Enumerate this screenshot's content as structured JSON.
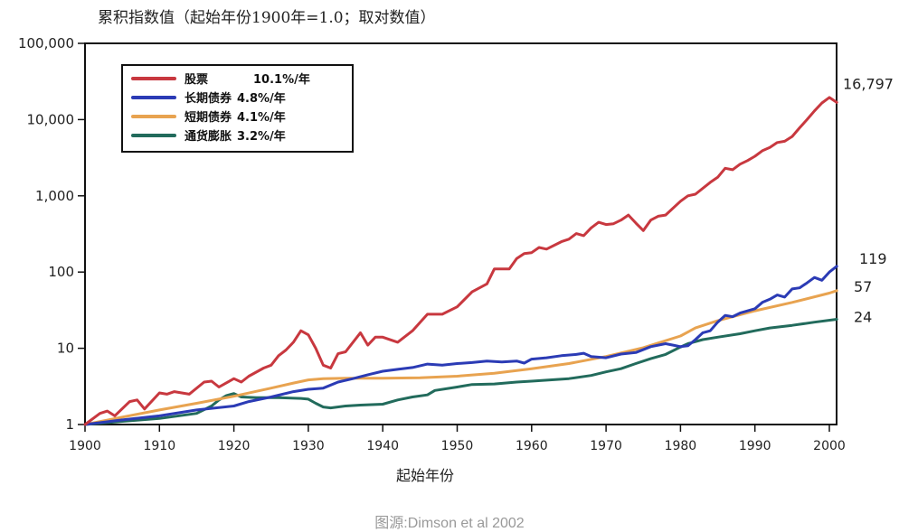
{
  "chart_data": {
    "type": "line",
    "title": "累积指数值（起始年份1900年=1.0；取对数值）",
    "xlabel": "起始年份",
    "ylabel": "",
    "yscale": "log",
    "xlim": [
      1900,
      2001
    ],
    "ylim": [
      1,
      100000
    ],
    "yticks": [
      {
        "value": 1,
        "label": "1"
      },
      {
        "value": 10,
        "label": "10"
      },
      {
        "value": 100,
        "label": "100"
      },
      {
        "value": 1000,
        "label": "1,000"
      },
      {
        "value": 10000,
        "label": "10,000"
      },
      {
        "value": 100000,
        "label": "100,000"
      }
    ],
    "xticks": [
      {
        "value": 1900,
        "label": "1900"
      },
      {
        "value": 1910,
        "label": "1910"
      },
      {
        "value": 1920,
        "label": "1920"
      },
      {
        "value": 1930,
        "label": "1930"
      },
      {
        "value": 1940,
        "label": "1940"
      },
      {
        "value": 1950,
        "label": "1950"
      },
      {
        "value": 1960,
        "label": "1960"
      },
      {
        "value": 1970,
        "label": "1970"
      },
      {
        "value": 1980,
        "label": "1980"
      },
      {
        "value": 1990,
        "label": "1990"
      },
      {
        "value": 2000,
        "label": "2000"
      }
    ],
    "legend_position": "top-left",
    "grid": false,
    "series": [
      {
        "name": "股票",
        "legend_rate": "10.1%/年",
        "color": "#c8383f",
        "end_label": "16,797",
        "points": [
          [
            1900,
            1
          ],
          [
            1902,
            1.4
          ],
          [
            1903,
            1.5
          ],
          [
            1904,
            1.3
          ],
          [
            1906,
            2.0
          ],
          [
            1907,
            2.1
          ],
          [
            1908,
            1.6
          ],
          [
            1910,
            2.6
          ],
          [
            1911,
            2.5
          ],
          [
            1912,
            2.7
          ],
          [
            1914,
            2.5
          ],
          [
            1916,
            3.6
          ],
          [
            1917,
            3.7
          ],
          [
            1918,
            3.1
          ],
          [
            1920,
            4.0
          ],
          [
            1921,
            3.6
          ],
          [
            1922,
            4.3
          ],
          [
            1924,
            5.5
          ],
          [
            1925,
            6.0
          ],
          [
            1926,
            8.0
          ],
          [
            1927,
            9.5
          ],
          [
            1928,
            12
          ],
          [
            1929,
            17
          ],
          [
            1930,
            15
          ],
          [
            1931,
            10
          ],
          [
            1932,
            6.0
          ],
          [
            1933,
            5.5
          ],
          [
            1934,
            8.5
          ],
          [
            1935,
            9.0
          ],
          [
            1937,
            16
          ],
          [
            1938,
            11
          ],
          [
            1939,
            14
          ],
          [
            1940,
            14
          ],
          [
            1942,
            12
          ],
          [
            1944,
            17
          ],
          [
            1946,
            28
          ],
          [
            1948,
            28
          ],
          [
            1950,
            35
          ],
          [
            1952,
            55
          ],
          [
            1953,
            62
          ],
          [
            1954,
            70
          ],
          [
            1955,
            110
          ],
          [
            1957,
            110
          ],
          [
            1958,
            150
          ],
          [
            1959,
            175
          ],
          [
            1960,
            180
          ],
          [
            1961,
            210
          ],
          [
            1962,
            200
          ],
          [
            1964,
            250
          ],
          [
            1965,
            270
          ],
          [
            1966,
            320
          ],
          [
            1967,
            300
          ],
          [
            1968,
            380
          ],
          [
            1969,
            450
          ],
          [
            1970,
            420
          ],
          [
            1971,
            430
          ],
          [
            1972,
            480
          ],
          [
            1973,
            560
          ],
          [
            1974,
            440
          ],
          [
            1975,
            350
          ],
          [
            1976,
            480
          ],
          [
            1977,
            540
          ],
          [
            1978,
            560
          ],
          [
            1980,
            850
          ],
          [
            1981,
            1000
          ],
          [
            1982,
            1050
          ],
          [
            1984,
            1500
          ],
          [
            1985,
            1750
          ],
          [
            1986,
            2300
          ],
          [
            1987,
            2200
          ],
          [
            1988,
            2600
          ],
          [
            1989,
            2900
          ],
          [
            1990,
            3300
          ],
          [
            1991,
            3900
          ],
          [
            1992,
            4300
          ],
          [
            1993,
            5000
          ],
          [
            1994,
            5200
          ],
          [
            1995,
            6000
          ],
          [
            1996,
            7800
          ],
          [
            1997,
            10000
          ],
          [
            1998,
            13000
          ],
          [
            1999,
            16500
          ],
          [
            2000,
            19500
          ],
          [
            2001,
            16797
          ]
        ]
      },
      {
        "name": "长期债券",
        "legend_rate": "4.8%/年",
        "color": "#2b3bb5",
        "end_label": "119",
        "points": [
          [
            1900,
            1
          ],
          [
            1905,
            1.15
          ],
          [
            1910,
            1.3
          ],
          [
            1915,
            1.55
          ],
          [
            1920,
            1.75
          ],
          [
            1922,
            2.0
          ],
          [
            1925,
            2.3
          ],
          [
            1928,
            2.7
          ],
          [
            1930,
            2.9
          ],
          [
            1932,
            3.0
          ],
          [
            1934,
            3.6
          ],
          [
            1936,
            4.0
          ],
          [
            1938,
            4.5
          ],
          [
            1940,
            5.0
          ],
          [
            1942,
            5.3
          ],
          [
            1944,
            5.6
          ],
          [
            1946,
            6.2
          ],
          [
            1948,
            6.0
          ],
          [
            1950,
            6.3
          ],
          [
            1952,
            6.5
          ],
          [
            1954,
            6.8
          ],
          [
            1956,
            6.6
          ],
          [
            1958,
            6.8
          ],
          [
            1959,
            6.4
          ],
          [
            1960,
            7.2
          ],
          [
            1962,
            7.5
          ],
          [
            1964,
            8.0
          ],
          [
            1966,
            8.3
          ],
          [
            1967,
            8.6
          ],
          [
            1968,
            7.8
          ],
          [
            1970,
            7.5
          ],
          [
            1972,
            8.4
          ],
          [
            1974,
            8.8
          ],
          [
            1976,
            10.5
          ],
          [
            1978,
            11.5
          ],
          [
            1979,
            11
          ],
          [
            1980,
            10.5
          ],
          [
            1981,
            10.8
          ],
          [
            1982,
            13
          ],
          [
            1983,
            16
          ],
          [
            1984,
            17
          ],
          [
            1985,
            22
          ],
          [
            1986,
            27
          ],
          [
            1987,
            26
          ],
          [
            1988,
            29
          ],
          [
            1990,
            33
          ],
          [
            1991,
            40
          ],
          [
            1992,
            44
          ],
          [
            1993,
            50
          ],
          [
            1994,
            47
          ],
          [
            1995,
            60
          ],
          [
            1996,
            62
          ],
          [
            1997,
            72
          ],
          [
            1998,
            85
          ],
          [
            1999,
            78
          ],
          [
            2000,
            100
          ],
          [
            2001,
            119
          ]
        ]
      },
      {
        "name": "短期债券",
        "legend_rate": "4.1%/年",
        "color": "#e8a350",
        "end_label": "57",
        "points": [
          [
            1900,
            1
          ],
          [
            1905,
            1.25
          ],
          [
            1910,
            1.55
          ],
          [
            1915,
            1.9
          ],
          [
            1920,
            2.35
          ],
          [
            1925,
            3.0
          ],
          [
            1928,
            3.5
          ],
          [
            1930,
            3.85
          ],
          [
            1932,
            4.0
          ],
          [
            1935,
            4.05
          ],
          [
            1940,
            4.05
          ],
          [
            1945,
            4.1
          ],
          [
            1950,
            4.3
          ],
          [
            1955,
            4.7
          ],
          [
            1960,
            5.4
          ],
          [
            1965,
            6.3
          ],
          [
            1970,
            7.8
          ],
          [
            1975,
            10.2
          ],
          [
            1980,
            14.5
          ],
          [
            1982,
            18.5
          ],
          [
            1985,
            23
          ],
          [
            1990,
            31
          ],
          [
            1995,
            40
          ],
          [
            2000,
            53
          ],
          [
            2001,
            57
          ]
        ]
      },
      {
        "name": "通货膨胀",
        "legend_rate": "3.2%/年",
        "color": "#226b5c",
        "end_label": "24",
        "points": [
          [
            1900,
            1
          ],
          [
            1905,
            1.1
          ],
          [
            1910,
            1.2
          ],
          [
            1915,
            1.4
          ],
          [
            1917,
            1.75
          ],
          [
            1918,
            2.1
          ],
          [
            1919,
            2.4
          ],
          [
            1920,
            2.55
          ],
          [
            1921,
            2.3
          ],
          [
            1923,
            2.25
          ],
          [
            1926,
            2.25
          ],
          [
            1929,
            2.2
          ],
          [
            1930,
            2.15
          ],
          [
            1931,
            1.9
          ],
          [
            1932,
            1.7
          ],
          [
            1933,
            1.65
          ],
          [
            1935,
            1.75
          ],
          [
            1937,
            1.8
          ],
          [
            1940,
            1.85
          ],
          [
            1942,
            2.1
          ],
          [
            1944,
            2.3
          ],
          [
            1946,
            2.45
          ],
          [
            1947,
            2.8
          ],
          [
            1950,
            3.1
          ],
          [
            1952,
            3.35
          ],
          [
            1955,
            3.4
          ],
          [
            1958,
            3.6
          ],
          [
            1960,
            3.7
          ],
          [
            1965,
            4.0
          ],
          [
            1968,
            4.4
          ],
          [
            1970,
            4.9
          ],
          [
            1972,
            5.4
          ],
          [
            1974,
            6.3
          ],
          [
            1976,
            7.3
          ],
          [
            1978,
            8.3
          ],
          [
            1980,
            10.4
          ],
          [
            1981,
            11.5
          ],
          [
            1983,
            13
          ],
          [
            1985,
            14
          ],
          [
            1988,
            15.5
          ],
          [
            1990,
            17
          ],
          [
            1992,
            18.5
          ],
          [
            1995,
            20
          ],
          [
            1998,
            22
          ],
          [
            2001,
            24
          ]
        ]
      }
    ],
    "source_note": "图源:Dimson et al 2002"
  }
}
